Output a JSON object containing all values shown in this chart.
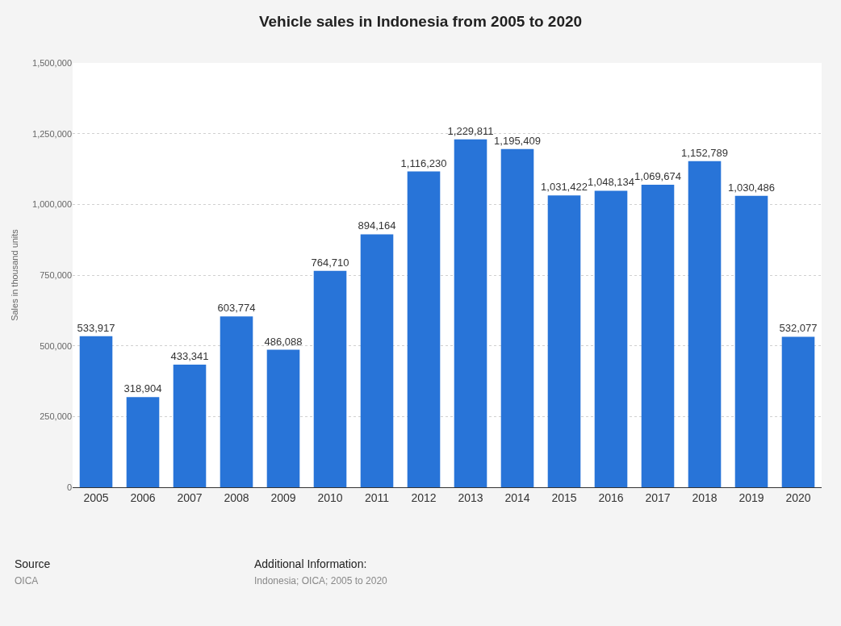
{
  "chart_data": {
    "type": "bar",
    "title": "Vehicle sales in Indonesia from 2005 to 2020",
    "ylabel": "Sales in thousand units",
    "categories": [
      "2005",
      "2006",
      "2007",
      "2008",
      "2009",
      "2010",
      "2011",
      "2012",
      "2013",
      "2014",
      "2015",
      "2016",
      "2017",
      "2018",
      "2019",
      "2020"
    ],
    "values": [
      533917,
      318904,
      433341,
      603774,
      486088,
      764710,
      894164,
      1116230,
      1229811,
      1195409,
      1031422,
      1048134,
      1069674,
      1152789,
      1030486,
      532077
    ],
    "color": "#2874d8",
    "ylim": [
      0,
      1500000
    ],
    "yticks": [
      0,
      {
        "value": 250000,
        "label": "250,000"
      },
      {
        "value": 500000,
        "label": "500,000"
      },
      {
        "value": 750000,
        "label": "750,000"
      },
      {
        "value": 1000000,
        "label": "1,000,000"
      },
      {
        "value": 1250000,
        "label": "1,250,000"
      },
      {
        "value": 1500000,
        "label": "1,500,000"
      }
    ],
    "value_labels": [
      "533,917",
      "318,904",
      "433,341",
      "603,774",
      "486,088",
      "764,710",
      "894,164",
      "1,116,230",
      "1,229,811",
      "1,195,409",
      "1,031,422",
      "1,048,134",
      "1,069,674",
      "1,152,789",
      "1,030,486",
      "532,077"
    ],
    "grid": "y",
    "annotations": [
      "Source",
      "OICA",
      "Additional Information:",
      "Indonesia; OICA; 2005 to 2020"
    ]
  }
}
